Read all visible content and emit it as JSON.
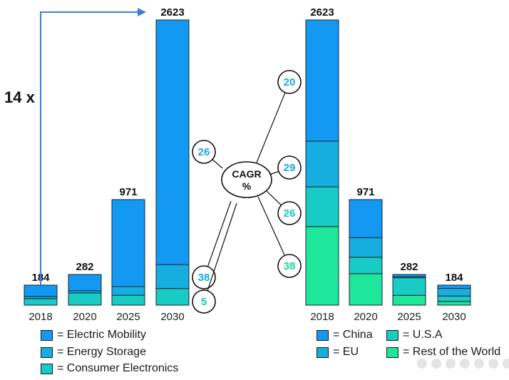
{
  "colors": {
    "electric_mobility": "#1499f2",
    "energy_storage": "#16aee0",
    "consumer_electronics": "#18cbc4",
    "china": "#1499f2",
    "eu": "#16aee0",
    "usa": "#18cbc4",
    "rest_of_world": "#1ee69a",
    "cagr_text_blue": "#1aa7e8",
    "cagr_text_teal": "#14c8c0",
    "cagr_text_green": "#18d69a",
    "arrow": "#3b7fd4"
  },
  "annotation": {
    "growth_factor": "14 x"
  },
  "cagr_hub": {
    "label_line1": "CAGR",
    "label_line2": "%"
  },
  "chart_data": [
    {
      "type": "bar",
      "stacked": true,
      "title": "",
      "categories": [
        "2018",
        "2020",
        "2025",
        "2030"
      ],
      "totals": [
        184,
        282,
        971,
        2623
      ],
      "ylim": [
        0,
        2623
      ],
      "series": [
        {
          "name": "Electric Mobility",
          "values": [
            104,
            150,
            800,
            2250
          ],
          "color_key": "electric_mobility"
        },
        {
          "name": "Energy Storage",
          "values": [
            20,
            20,
            80,
            220
          ],
          "color_key": "energy_storage"
        },
        {
          "name": "Consumer Electronics",
          "values": [
            60,
            112,
            91,
            153
          ],
          "color_key": "consumer_electronics"
        }
      ],
      "cagr": [
        {
          "series": "Electric Mobility",
          "value": "26",
          "color_key": "cagr_text_blue"
        },
        {
          "series": "Energy Storage",
          "value": "38",
          "color_key": "cagr_text_blue"
        },
        {
          "series": "Consumer Electronics",
          "value": "5",
          "color_key": "cagr_text_teal"
        }
      ],
      "legend": [
        "= Electric Mobility",
        "= Energy Storage",
        "= Consumer Electronics"
      ]
    },
    {
      "type": "bar",
      "stacked": true,
      "title": "",
      "categories": [
        "2018",
        "2020",
        "2025",
        "2030"
      ],
      "totals": [
        2623,
        971,
        282,
        184
      ],
      "ylim": [
        0,
        2623
      ],
      "series": [
        {
          "name": "China",
          "values": [
            1115,
            350,
            20,
            30
          ],
          "color_key": "china"
        },
        {
          "name": "EU",
          "values": [
            420,
            180,
            10,
            70
          ],
          "color_key": "eu"
        },
        {
          "name": "U.S.A",
          "values": [
            365,
            151,
            162,
            50
          ],
          "color_key": "usa"
        },
        {
          "name": "Rest of the World",
          "values": [
            723,
            290,
            90,
            34
          ],
          "color_key": "rest_of_world"
        }
      ],
      "cagr": [
        {
          "series": "China",
          "value": "20",
          "color_key": "cagr_text_blue"
        },
        {
          "series": "EU",
          "value": "29",
          "color_key": "cagr_text_blue"
        },
        {
          "series": "U.S.A",
          "value": "26",
          "color_key": "cagr_text_teal"
        },
        {
          "series": "Rest of the World",
          "value": "38",
          "color_key": "cagr_text_green"
        }
      ],
      "legend": [
        "= China",
        "= U.S.A",
        "= EU",
        "= Rest of the World"
      ]
    }
  ]
}
